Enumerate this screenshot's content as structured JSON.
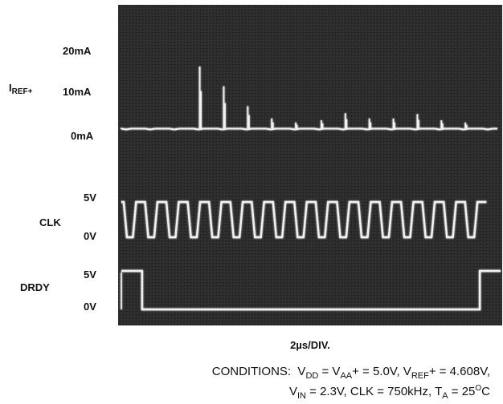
{
  "chart_data": {
    "type": "line",
    "title": "",
    "xlabel": "2µs/DIV.",
    "x_unit_per_div": "2µs",
    "channels": [
      {
        "name": "IREF+",
        "name_main": "I",
        "name_sub": "REF+",
        "tick_labels": [
          "20mA",
          "10mA",
          "0mA"
        ],
        "ticks_mA": [
          20,
          10,
          0
        ],
        "baseline_mA": 0,
        "spikes": [
          {
            "t_us": 5.1,
            "value_mA": 14
          },
          {
            "t_us": 6.6,
            "value_mA": 9.5
          },
          {
            "t_us": 8.1,
            "value_mA": 5
          },
          {
            "t_us": 9.6,
            "value_mA": 2.2
          },
          {
            "t_us": 11.1,
            "value_mA": 1.3
          },
          {
            "t_us": 12.7,
            "value_mA": 1.8
          },
          {
            "t_us": 14.2,
            "value_mA": 3.4
          },
          {
            "t_us": 15.7,
            "value_mA": 2.2
          },
          {
            "t_us": 17.2,
            "value_mA": 2.2
          },
          {
            "t_us": 18.7,
            "value_mA": 3.2
          },
          {
            "t_us": 20.2,
            "value_mA": 1.8
          },
          {
            "t_us": 21.7,
            "value_mA": 1.3
          }
        ]
      },
      {
        "name": "CLK",
        "tick_labels": [
          "5V",
          "0V"
        ],
        "levels_V": [
          5,
          0
        ],
        "frequency_kHz": 750,
        "period_us": 1.333,
        "cycles_visible": 17
      },
      {
        "name": "DRDY",
        "tick_labels": [
          "5V",
          "0V"
        ],
        "levels_V": [
          5,
          0
        ],
        "high_until_us": 1.5,
        "high_from_us": 22.6
      }
    ],
    "grid": false
  },
  "conditions": {
    "prefix": "CONDITIONS:  ",
    "line1": [
      {
        "t": "V"
      },
      {
        "s": "DD"
      },
      {
        "t": " = V"
      },
      {
        "s": "AA"
      },
      {
        "t": "+ = 5.0V, V"
      },
      {
        "s": "REF"
      },
      {
        "t": "+ = 4.608V,"
      }
    ],
    "line2": [
      {
        "t": "V"
      },
      {
        "s": "IN"
      },
      {
        "t": " = 2.3V, CLK = 750kHz, T"
      },
      {
        "s": "A"
      },
      {
        "t": " = 25"
      },
      {
        "p": "O"
      },
      {
        "t": "C"
      }
    ]
  }
}
